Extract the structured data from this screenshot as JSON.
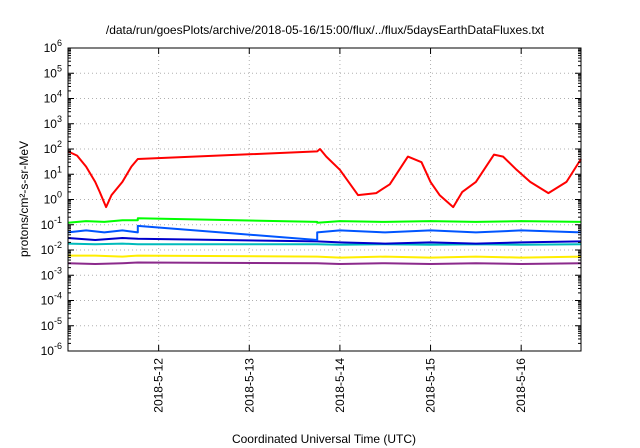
{
  "chart_data": {
    "type": "line",
    "title": "/data/run/goesPlots/archive/2018-05-16/15:00/flux/../flux/5daysEarthDataFluxes.txt",
    "xlabel": "Coordinated Universal Time (UTC)",
    "ylabel": "protons/cm²-s-sr-MeV",
    "yscale": "log",
    "ylim": [
      1e-06,
      1000000.0
    ],
    "xlim": [
      11.0,
      16.66
    ],
    "y_ticks": [
      {
        "value": 1e-06,
        "base": "10",
        "exp": "-6"
      },
      {
        "value": 1e-05,
        "base": "10",
        "exp": "-5"
      },
      {
        "value": 0.0001,
        "base": "10",
        "exp": "-4"
      },
      {
        "value": 0.001,
        "base": "10",
        "exp": "-3"
      },
      {
        "value": 0.01,
        "base": "10",
        "exp": "-2"
      },
      {
        "value": 0.1,
        "base": "10",
        "exp": "-1"
      },
      {
        "value": 1,
        "base": "10",
        "exp": "0"
      },
      {
        "value": 10,
        "base": "10",
        "exp": "1"
      },
      {
        "value": 100,
        "base": "10",
        "exp": "2"
      },
      {
        "value": 1000,
        "base": "10",
        "exp": "3"
      },
      {
        "value": 10000,
        "base": "10",
        "exp": "4"
      },
      {
        "value": 100000,
        "base": "10",
        "exp": "5"
      },
      {
        "value": 1000000,
        "base": "10",
        "exp": "6"
      }
    ],
    "x_ticks": [
      {
        "value": 12,
        "label": "2018-5-12"
      },
      {
        "value": 13,
        "label": "2018-5-13"
      },
      {
        "value": 14,
        "label": "2018-5-14"
      },
      {
        "value": 15,
        "label": "2018-5-15"
      },
      {
        "value": 16,
        "label": "2018-5-16"
      }
    ],
    "grid": true,
    "series": [
      {
        "color": "#ff0000",
        "x": [
          11.0,
          11.1,
          11.2,
          11.3,
          11.35,
          11.42,
          11.48,
          11.6,
          11.7,
          11.77,
          13.75,
          13.78,
          13.85,
          14.0,
          14.2,
          14.4,
          14.55,
          14.75,
          14.9,
          15.0,
          15.1,
          15.25,
          15.35,
          15.5,
          15.7,
          15.8,
          15.95,
          16.1,
          16.3,
          16.5,
          16.66
        ],
        "y": [
          80,
          55,
          20,
          5,
          2,
          0.5,
          1.5,
          5,
          20,
          40,
          80,
          100,
          50,
          15,
          1.5,
          1.8,
          4,
          50,
          30,
          5,
          1.5,
          0.5,
          2,
          5,
          60,
          50,
          15,
          5,
          1.8,
          5,
          40
        ]
      },
      {
        "color": "#00ff00",
        "x": [
          11.0,
          11.2,
          11.4,
          11.6,
          11.77,
          11.77,
          13.75,
          13.75,
          14.0,
          14.5,
          15.0,
          15.5,
          16.0,
          16.66
        ],
        "y": [
          0.12,
          0.14,
          0.13,
          0.15,
          0.15,
          0.18,
          0.13,
          0.12,
          0.14,
          0.13,
          0.14,
          0.13,
          0.14,
          0.13
        ]
      },
      {
        "color": "#0055ff",
        "x": [
          11.0,
          11.2,
          11.4,
          11.6,
          11.77,
          11.77,
          13.75,
          13.75,
          14.0,
          14.5,
          15.0,
          15.5,
          16.0,
          16.66
        ],
        "y": [
          0.05,
          0.06,
          0.05,
          0.06,
          0.05,
          0.09,
          0.025,
          0.05,
          0.06,
          0.05,
          0.06,
          0.05,
          0.06,
          0.05
        ]
      },
      {
        "color": "#0000cc",
        "x": [
          11.0,
          11.3,
          11.6,
          11.77,
          13.75,
          14.0,
          14.5,
          15.0,
          15.5,
          16.0,
          16.66
        ],
        "y": [
          0.03,
          0.025,
          0.03,
          0.028,
          0.022,
          0.02,
          0.018,
          0.02,
          0.018,
          0.02,
          0.022
        ]
      },
      {
        "color": "#00bbbb",
        "x": [
          11.0,
          11.3,
          11.6,
          11.77,
          13.75,
          14.0,
          14.5,
          15.0,
          15.5,
          16.0,
          16.66
        ],
        "y": [
          0.018,
          0.017,
          0.018,
          0.017,
          0.017,
          0.016,
          0.017,
          0.016,
          0.017,
          0.016,
          0.017
        ]
      },
      {
        "color": "#ffee00",
        "x": [
          11.0,
          11.3,
          11.6,
          11.77,
          13.75,
          14.0,
          14.5,
          15.0,
          15.5,
          16.0,
          16.66
        ],
        "y": [
          0.006,
          0.006,
          0.0055,
          0.006,
          0.0055,
          0.005,
          0.0055,
          0.005,
          0.0055,
          0.005,
          0.0055
        ]
      },
      {
        "color": "#8b2a8b",
        "x": [
          11.0,
          11.3,
          11.6,
          11.77,
          13.75,
          14.0,
          14.5,
          15.0,
          15.5,
          16.0,
          16.66
        ],
        "y": [
          0.003,
          0.0028,
          0.003,
          0.0032,
          0.003,
          0.0028,
          0.003,
          0.0028,
          0.003,
          0.0028,
          0.003
        ]
      }
    ]
  }
}
